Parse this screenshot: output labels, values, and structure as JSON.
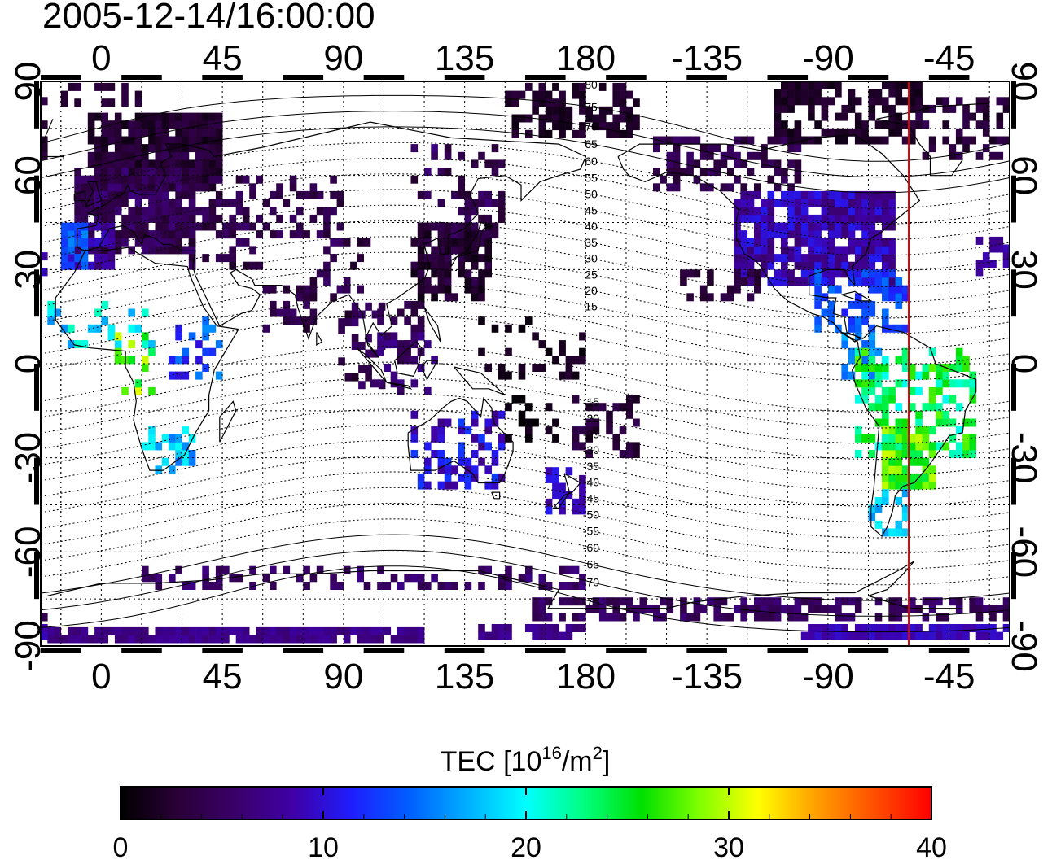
{
  "map": {
    "timestamp": "2005-12-14/16:00:00",
    "projection": "equirectangular",
    "lon_ticks_top": [
      "0",
      "45",
      "90",
      "135",
      "180",
      "-135",
      "-90",
      "-45"
    ],
    "lon_ticks_bottom": [
      "0",
      "45",
      "90",
      "135",
      "180",
      "-135",
      "-90",
      "-45"
    ],
    "lat_ticks_left": [
      "90",
      "60",
      "30",
      "0",
      "-30",
      "-60",
      "-90"
    ],
    "lat_ticks_right": [
      "90",
      "60",
      "30",
      "0",
      "-30",
      "-60",
      "-90"
    ],
    "grid": "dotted 15-degree graticule",
    "marker_line": {
      "longitude": -60,
      "color": "#e00000"
    },
    "contour_labels_north": [
      "80",
      "75",
      "70",
      "65",
      "60",
      "55",
      "50",
      "45",
      "40",
      "35",
      "30",
      "25",
      "20",
      "15"
    ],
    "contour_labels_south": [
      "-15",
      "-20",
      "-25",
      "-30",
      "-35",
      "-40",
      "-45",
      "-50",
      "-55",
      "-60",
      "-65",
      "-70",
      "-75"
    ]
  },
  "colorbar": {
    "title_prefix": "TEC  [10",
    "title_exp1": "16",
    "title_mid": "/m",
    "title_exp2": "2",
    "title_suffix": "]",
    "tick_labels": [
      "0",
      "10",
      "20",
      "30",
      "40"
    ],
    "range": [
      0,
      40
    ],
    "colors": [
      "#000000",
      "#2a0038",
      "#3a006a",
      "#3f00a8",
      "#1e1eff",
      "#0060ff",
      "#00b0ff",
      "#00ffff",
      "#00ff80",
      "#00e000",
      "#80ff00",
      "#ffff00",
      "#ffa000",
      "#ff5000",
      "#ff0000"
    ]
  }
}
